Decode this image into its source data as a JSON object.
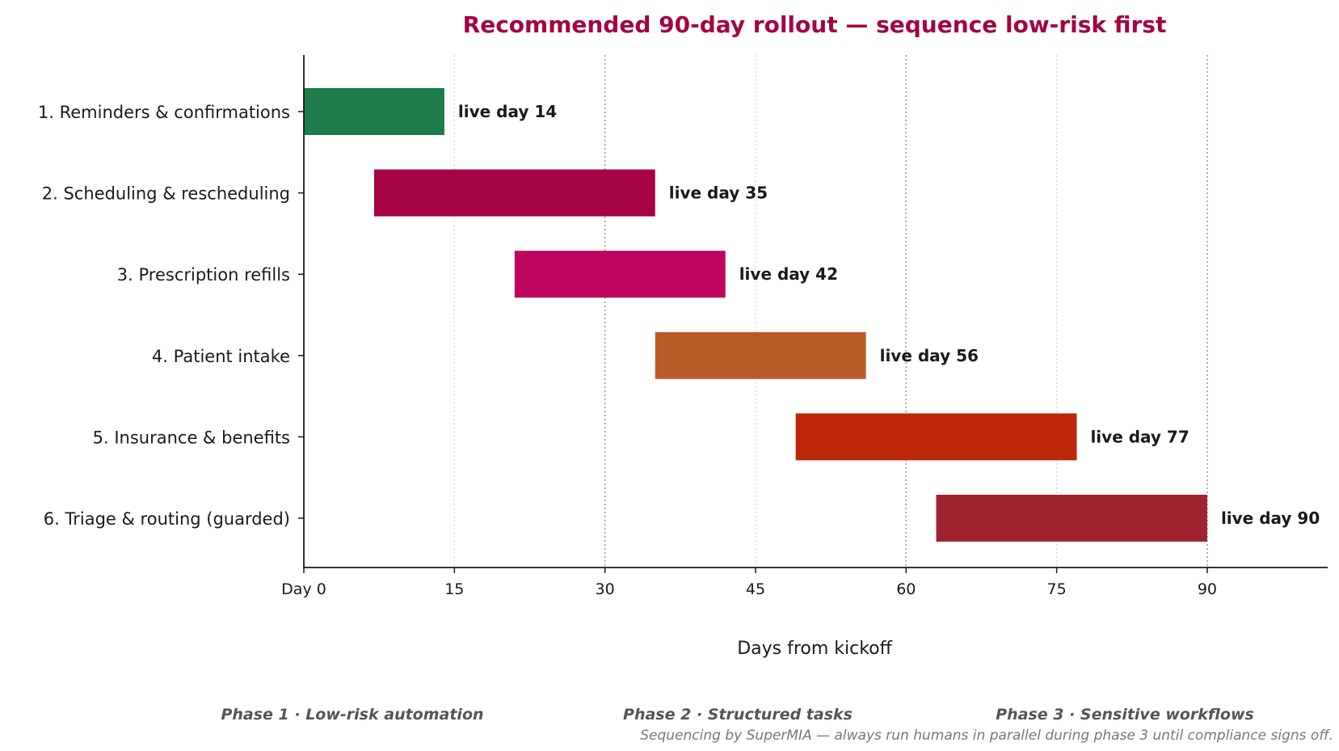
{
  "chart_data": {
    "type": "bar",
    "orientation": "horizontal",
    "title": "Recommended 90-day rollout — sequence low-risk first",
    "xlabel": "Days from kickoff",
    "ylabel": "",
    "xlim": [
      0,
      102
    ],
    "x_ticks": [
      0,
      15,
      30,
      45,
      60,
      75,
      90
    ],
    "x_tick_labels": [
      "Day 0",
      "15",
      "30",
      "45",
      "60",
      "75",
      "90"
    ],
    "grid": "vertical dotted at each tick; stronger at 30, 60, 90",
    "title_color": "#a3053f",
    "tasks": [
      {
        "label": "1. Reminders & confirmations",
        "start": 0,
        "end": 14,
        "color": "#1e7b4a",
        "annotation": "live day 14"
      },
      {
        "label": "2. Scheduling & rescheduling",
        "start": 7,
        "end": 35,
        "color": "#a60342",
        "annotation": "live day 35"
      },
      {
        "label": "3. Prescription refills",
        "start": 21,
        "end": 42,
        "color": "#bd065b",
        "annotation": "live day 42"
      },
      {
        "label": "4. Patient intake",
        "start": 35,
        "end": 56,
        "color": "#b85c27",
        "annotation": "live day 56"
      },
      {
        "label": "5. Insurance & benefits",
        "start": 49,
        "end": 77,
        "color": "#bd2709",
        "annotation": "live day 77"
      },
      {
        "label": "6. Triage & routing (guarded)",
        "start": 63,
        "end": 90,
        "color": "#9e2230",
        "annotation": "live day 90"
      }
    ],
    "phases": [
      "Phase 1  ·  Low-risk automation",
      "Phase 2  ·  Structured tasks",
      "Phase 3  ·  Sensitive workflows"
    ],
    "footnote": "Sequencing by SuperMIA — always run humans in parallel during phase 3 until compliance signs off."
  }
}
